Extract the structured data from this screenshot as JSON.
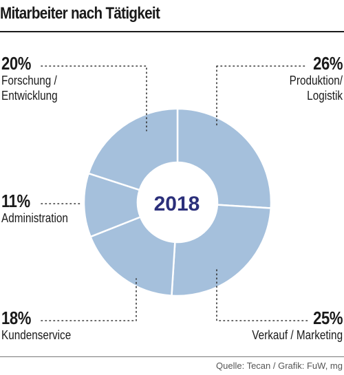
{
  "title": "Mitarbeiter nach Tätigkeit",
  "source": "Quelle: Tecan / Grafik: FuW, mg",
  "center_label": "2018",
  "colors": {
    "slice": "#a5c0dc",
    "separator": "#ffffff",
    "center_text": "#2b2f7a",
    "leader": "#333333"
  },
  "chart_data": {
    "type": "pie",
    "style": "donut",
    "title": "Mitarbeiter nach Tätigkeit",
    "unit": "%",
    "slices": [
      {
        "name": "Produktion/ Logistik",
        "value": 26,
        "label": "26%",
        "lines": [
          "Produktion/",
          "Logistik"
        ]
      },
      {
        "name": "Verkauf / Marketing",
        "value": 25,
        "label": "25%",
        "lines": [
          "Verkauf / Marketing"
        ]
      },
      {
        "name": "Kundenservice",
        "value": 18,
        "label": "18%",
        "lines": [
          "Kundenservice"
        ]
      },
      {
        "name": "Administration",
        "value": 11,
        "label": "11%",
        "lines": [
          "Administration"
        ]
      },
      {
        "name": "Forschung / Entwicklung",
        "value": 20,
        "label": "20%",
        "lines": [
          "Forschung /",
          "Entwicklung"
        ]
      }
    ]
  }
}
